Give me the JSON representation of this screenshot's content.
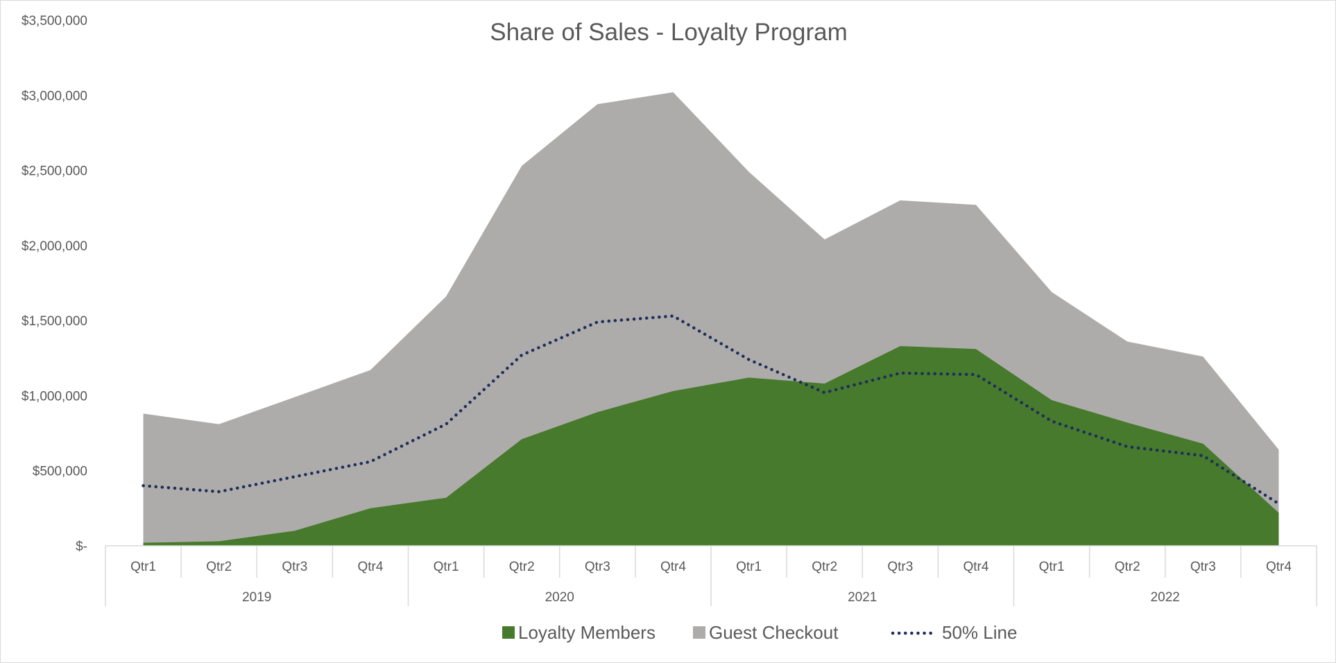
{
  "chart_data": {
    "type": "area",
    "title": "Share of Sales - Loyalty Program",
    "xlabel": "",
    "ylabel": "",
    "ylim": [
      0,
      3500000
    ],
    "y_ticks": [
      {
        "value": 0,
        "label": "$-"
      },
      {
        "value": 500000,
        "label": "$500,000"
      },
      {
        "value": 1000000,
        "label": "$1,000,000"
      },
      {
        "value": 1500000,
        "label": "$1,500,000"
      },
      {
        "value": 2000000,
        "label": "$2,000,000"
      },
      {
        "value": 2500000,
        "label": "$2,500,000"
      },
      {
        "value": 3000000,
        "label": "$3,000,000"
      },
      {
        "value": 3500000,
        "label": "$3,500,000"
      }
    ],
    "categories": [
      "Qtr1",
      "Qtr2",
      "Qtr3",
      "Qtr4",
      "Qtr1",
      "Qtr2",
      "Qtr3",
      "Qtr4",
      "Qtr1",
      "Qtr2",
      "Qtr3",
      "Qtr4",
      "Qtr1",
      "Qtr2",
      "Qtr3",
      "Qtr4"
    ],
    "groups": [
      {
        "label": "2019",
        "count": 4
      },
      {
        "label": "2020",
        "count": 4
      },
      {
        "label": "2021",
        "count": 4
      },
      {
        "label": "2022",
        "count": 4
      }
    ],
    "grid": false,
    "legend_position": "bottom",
    "series": [
      {
        "name": "Loyalty Members",
        "kind": "area",
        "color": "#477A2D",
        "values": [
          20000,
          30000,
          100000,
          250000,
          320000,
          710000,
          890000,
          1030000,
          1120000,
          1080000,
          1330000,
          1310000,
          970000,
          820000,
          680000,
          220000
        ]
      },
      {
        "name": "Guest Checkout",
        "kind": "area-stacked",
        "color": "#ADACAA",
        "values": [
          860000,
          780000,
          890000,
          920000,
          1340000,
          1820000,
          2050000,
          1990000,
          1370000,
          960000,
          970000,
          960000,
          720000,
          540000,
          580000,
          420000
        ]
      },
      {
        "name": "50% Line",
        "kind": "dotted-line",
        "color": "#1F2D5A",
        "values": [
          400000,
          360000,
          460000,
          560000,
          810000,
          1270000,
          1490000,
          1530000,
          1240000,
          1020000,
          1150000,
          1140000,
          830000,
          660000,
          600000,
          280000
        ]
      }
    ]
  }
}
